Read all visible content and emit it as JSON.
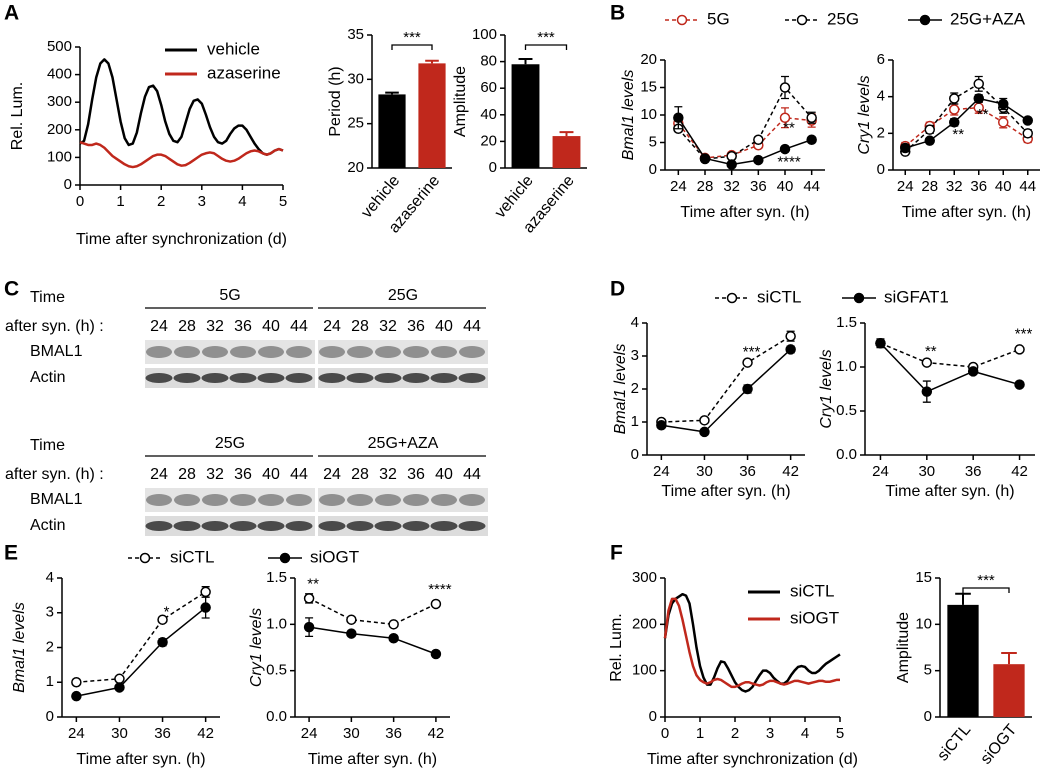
{
  "panel_labels": [
    "A",
    "B",
    "C",
    "D",
    "E",
    "F"
  ],
  "chart_data": [
    {
      "type": "line",
      "xlabel": "Time after synchronization (d)",
      "ylabel": "Rel. Lum.",
      "x": [
        0,
        0.1,
        0.2,
        0.3,
        0.4,
        0.5,
        0.6,
        0.7,
        0.8,
        0.9,
        1.0,
        1.1,
        1.2,
        1.3,
        1.4,
        1.5,
        1.6,
        1.7,
        1.8,
        1.9,
        2.0,
        2.1,
        2.2,
        2.3,
        2.4,
        2.5,
        2.6,
        2.7,
        2.8,
        2.9,
        3.0,
        3.1,
        3.2,
        3.3,
        3.4,
        3.5,
        3.6,
        3.7,
        3.8,
        3.9,
        4.0,
        4.1,
        4.2,
        4.3,
        4.4,
        4.5,
        4.6,
        4.7,
        4.8,
        4.9,
        5.0
      ],
      "xlim": [
        0,
        5
      ],
      "xticks": [
        0,
        1,
        2,
        3,
        4,
        5
      ],
      "ylim": [
        0,
        500
      ],
      "yticks": [
        0,
        100,
        200,
        300,
        400,
        500
      ],
      "series": [
        {
          "name": "vehicle",
          "color": "#000000",
          "values": [
            150,
            160,
            220,
            310,
            390,
            440,
            455,
            440,
            390,
            310,
            230,
            170,
            145,
            150,
            190,
            260,
            320,
            355,
            360,
            340,
            290,
            230,
            185,
            160,
            155,
            175,
            225,
            275,
            305,
            310,
            295,
            255,
            210,
            175,
            155,
            150,
            160,
            185,
            205,
            215,
            215,
            200,
            175,
            150,
            130,
            115,
            110,
            115,
            125,
            130,
            125
          ]
        },
        {
          "name": "azaserine",
          "color": "#c0281c",
          "values": [
            155,
            150,
            145,
            145,
            150,
            145,
            135,
            120,
            105,
            95,
            85,
            75,
            68,
            65,
            68,
            75,
            85,
            95,
            105,
            110,
            110,
            105,
            95,
            85,
            75,
            70,
            72,
            80,
            90,
            100,
            110,
            115,
            118,
            115,
            105,
            95,
            88,
            85,
            88,
            95,
            105,
            115,
            122,
            125,
            122,
            115,
            110,
            115,
            125,
            130,
            125
          ]
        }
      ]
    },
    {
      "type": "bar",
      "ylabel": "Period (h)",
      "categories": [
        "vehicle",
        "azaserine"
      ],
      "values": [
        28.3,
        31.8
      ],
      "errors": [
        0.2,
        0.3
      ],
      "colors": [
        "#000000",
        "#c0281c"
      ],
      "ylim": [
        20,
        35
      ],
      "yticks": [
        20,
        25,
        30,
        35
      ],
      "significance": "***"
    },
    {
      "type": "bar",
      "ylabel": "Amplitude",
      "categories": [
        "vehicle",
        "azaserine"
      ],
      "values": [
        78,
        24
      ],
      "errors": [
        4,
        3
      ],
      "colors": [
        "#000000",
        "#c0281c"
      ],
      "ylim": [
        0,
        100
      ],
      "yticks": [
        0,
        20,
        40,
        60,
        80,
        100
      ],
      "significance": "***"
    },
    {
      "type": "line",
      "xlabel": "Time after syn. (h)",
      "ylabel": "Bmal1 levels",
      "x": [
        24,
        28,
        32,
        36,
        40,
        44
      ],
      "xlim": [
        22,
        46
      ],
      "xticks": [
        24,
        28,
        32,
        36,
        40,
        44
      ],
      "ylim": [
        0,
        20
      ],
      "yticks": [
        0,
        5,
        10,
        15,
        20
      ],
      "series": [
        {
          "name": "5G",
          "color": "#c0281c",
          "dashed": true,
          "marker": "open",
          "values": [
            8.5,
            2.2,
            2.7,
            4.5,
            9.5,
            9.0
          ],
          "errors": [
            1,
            0.3,
            0.3,
            0.5,
            1.8,
            1.2
          ]
        },
        {
          "name": "25G",
          "color": "#000000",
          "dashed": true,
          "marker": "open",
          "values": [
            7.5,
            2.0,
            2.5,
            5.5,
            15,
            9.5
          ],
          "errors": [
            0.5,
            0.2,
            0.3,
            0.5,
            2,
            1
          ]
        },
        {
          "name": "25G+AZA",
          "color": "#000000",
          "dashed": false,
          "marker": "filled",
          "values": [
            9.5,
            2.1,
            1.0,
            1.8,
            3.8,
            5.5
          ],
          "errors": [
            2,
            0.2,
            0.2,
            0.2,
            0.3,
            0.3
          ]
        }
      ],
      "annotations": [
        {
          "text": "**",
          "x": 40
        },
        {
          "text": "****",
          "x": 40
        }
      ]
    },
    {
      "type": "line",
      "xlabel": "Time after syn. (h)",
      "ylabel": "Cry1 levels",
      "x": [
        24,
        28,
        32,
        36,
        40,
        44
      ],
      "xlim": [
        22,
        46
      ],
      "xticks": [
        24,
        28,
        32,
        36,
        40,
        44
      ],
      "ylim": [
        0,
        6
      ],
      "yticks": [
        0,
        2,
        4,
        6
      ],
      "series": [
        {
          "color": "#c0281c",
          "dashed": true,
          "marker": "open",
          "values": [
            1.3,
            2.4,
            3.3,
            3.4,
            2.6,
            1.7
          ],
          "errors": [
            0.2,
            0.2,
            0.3,
            0.3,
            0.3,
            0.2
          ]
        },
        {
          "color": "#000000",
          "dashed": true,
          "marker": "open",
          "values": [
            1.0,
            2.2,
            3.9,
            4.7,
            3.4,
            2.0
          ],
          "errors": [
            0.1,
            0.2,
            0.3,
            0.4,
            0.3,
            0.2
          ]
        },
        {
          "color": "#000000",
          "dashed": false,
          "marker": "filled",
          "values": [
            1.2,
            1.6,
            2.6,
            3.9,
            3.6,
            2.7
          ],
          "errors": [
            0.2,
            0.1,
            0.2,
            0.2,
            0.3,
            0.1
          ]
        }
      ],
      "annotations": [
        {
          "text": "**",
          "x": 32
        },
        {
          "text": "**",
          "x": 36
        }
      ]
    },
    {
      "type": "line",
      "xlabel": "Time after syn. (h)",
      "ylabel": "Bmal1 levels",
      "x": [
        24,
        30,
        36,
        42
      ],
      "xlim": [
        22,
        44
      ],
      "xticks": [
        24,
        30,
        36,
        42
      ],
      "ylim": [
        0,
        4
      ],
      "yticks": [
        0,
        1,
        2,
        3,
        4
      ],
      "series": [
        {
          "name": "siCTL",
          "color": "#000000",
          "dashed": true,
          "marker": "open",
          "values": [
            1.0,
            1.05,
            2.8,
            3.6
          ],
          "errors": [
            0.05,
            0.05,
            0.05,
            0.15
          ]
        },
        {
          "name": "siGFAT1",
          "color": "#000000",
          "dashed": false,
          "marker": "filled",
          "values": [
            0.9,
            0.7,
            2.0,
            3.2
          ],
          "errors": [
            0.05,
            0.05,
            0.12,
            0.1
          ]
        }
      ],
      "annotations": [
        {
          "text": "***",
          "x": 36
        }
      ]
    },
    {
      "type": "line",
      "xlabel": "Time after syn. (h)",
      "ylabel": "Cry1 levels",
      "x": [
        24,
        30,
        36,
        42
      ],
      "xlim": [
        22,
        44
      ],
      "xticks": [
        24,
        30,
        36,
        42
      ],
      "ylim": [
        0,
        1.5
      ],
      "yticks": [
        {
          "value": 0,
          "label": "0.0"
        },
        0.5,
        {
          "value": 1,
          "label": "1.0"
        },
        1.5
      ],
      "series": [
        {
          "color": "#000000",
          "dashed": true,
          "marker": "open",
          "values": [
            1.27,
            1.05,
            1.0,
            1.2
          ],
          "errors": [
            0.03,
            0.02,
            0.02,
            0.02
          ]
        },
        {
          "color": "#000000",
          "dashed": false,
          "marker": "filled",
          "values": [
            1.27,
            0.72,
            0.95,
            0.8
          ],
          "errors": [
            0.05,
            0.12,
            0.03,
            0.02
          ]
        }
      ],
      "annotations": [
        {
          "text": "**",
          "x": 30
        },
        {
          "text": "***",
          "x": 42
        }
      ]
    },
    {
      "type": "line",
      "xlabel": "Time after syn. (h)",
      "ylabel": "Bmal1 levels",
      "x": [
        24,
        30,
        36,
        42
      ],
      "xlim": [
        22,
        44
      ],
      "xticks": [
        24,
        30,
        36,
        42
      ],
      "ylim": [
        0,
        4
      ],
      "yticks": [
        0,
        1,
        2,
        3,
        4
      ],
      "series": [
        {
          "name": "siCTL",
          "color": "#000000",
          "dashed": true,
          "marker": "open",
          "values": [
            1.0,
            1.1,
            2.8,
            3.6
          ],
          "errors": [
            0.03,
            0.04,
            0.05,
            0.15
          ]
        },
        {
          "name": "siOGT",
          "color": "#000000",
          "dashed": false,
          "marker": "filled",
          "values": [
            0.6,
            0.85,
            2.15,
            3.15
          ],
          "errors": [
            0.03,
            0.05,
            0.1,
            0.3
          ]
        }
      ],
      "annotations": [
        {
          "text": "*",
          "x": 36
        }
      ]
    },
    {
      "type": "line",
      "xlabel": "Time after syn. (h)",
      "ylabel": "Cry1 levels",
      "x": [
        24,
        30,
        36,
        42
      ],
      "xlim": [
        22,
        44
      ],
      "xticks": [
        24,
        30,
        36,
        42
      ],
      "ylim": [
        0,
        1.5
      ],
      "yticks": [
        {
          "value": 0,
          "label": "0.0"
        },
        0.5,
        {
          "value": 1,
          "label": "1.0"
        },
        1.5
      ],
      "series": [
        {
          "color": "#000000",
          "dashed": true,
          "marker": "open",
          "values": [
            1.28,
            1.05,
            1.0,
            1.22
          ],
          "errors": [
            0.05,
            0.02,
            0.02,
            0.02
          ]
        },
        {
          "color": "#000000",
          "dashed": false,
          "marker": "filled",
          "values": [
            0.97,
            0.9,
            0.85,
            0.68
          ],
          "errors": [
            0.1,
            0.02,
            0.02,
            0.02
          ]
        }
      ],
      "annotations": [
        {
          "text": "**",
          "x": 24
        },
        {
          "text": "****",
          "x": 42
        }
      ]
    },
    {
      "type": "line",
      "xlabel": "Time after synchronization (d)",
      "ylabel": "Rel. Lum.",
      "x": [
        0,
        0.1,
        0.2,
        0.3,
        0.4,
        0.5,
        0.6,
        0.7,
        0.8,
        0.9,
        1.0,
        1.1,
        1.2,
        1.3,
        1.4,
        1.5,
        1.6,
        1.7,
        1.8,
        1.9,
        2.0,
        2.1,
        2.2,
        2.3,
        2.4,
        2.5,
        2.6,
        2.7,
        2.8,
        2.9,
        3.0,
        3.1,
        3.2,
        3.3,
        3.4,
        3.5,
        3.6,
        3.7,
        3.8,
        3.9,
        4.0,
        4.1,
        4.2,
        4.3,
        4.4,
        4.5,
        4.6,
        4.7,
        4.8,
        4.9,
        5.0
      ],
      "xlim": [
        0,
        5
      ],
      "xticks": [
        0,
        1,
        2,
        3,
        4,
        5
      ],
      "ylim": [
        0,
        300
      ],
      "yticks": [
        0,
        100,
        200,
        300
      ],
      "series": [
        {
          "name": "siCTL",
          "color": "#000000",
          "values": [
            170,
            220,
            245,
            255,
            260,
            265,
            262,
            245,
            200,
            150,
            110,
            85,
            70,
            70,
            85,
            105,
            120,
            118,
            105,
            90,
            75,
            65,
            58,
            55,
            58,
            65,
            78,
            90,
            100,
            100,
            95,
            85,
            78,
            72,
            72,
            78,
            90,
            100,
            108,
            110,
            108,
            100,
            95,
            95,
            100,
            108,
            115,
            120,
            125,
            130,
            135
          ]
        },
        {
          "name": "siOGT",
          "color": "#c0281c",
          "values": [
            170,
            230,
            255,
            255,
            240,
            210,
            175,
            140,
            110,
            90,
            80,
            75,
            72,
            75,
            80,
            82,
            80,
            75,
            70,
            65,
            65,
            68,
            72,
            75,
            75,
            72,
            70,
            68,
            70,
            75,
            78,
            78,
            75,
            72,
            70,
            72,
            75,
            78,
            78,
            76,
            74,
            72,
            74,
            76,
            78,
            78,
            76,
            76,
            78,
            80,
            80
          ]
        }
      ]
    },
    {
      "type": "bar",
      "ylabel": "Amplitude",
      "categories": [
        "siCTL",
        "siOGT"
      ],
      "values": [
        12.1,
        5.7
      ],
      "errors": [
        1.2,
        1.2
      ],
      "colors": [
        "#000000",
        "#c0281c"
      ],
      "ylim": [
        0,
        15
      ],
      "yticks": [
        0,
        5,
        10,
        15
      ],
      "significance": "***"
    }
  ],
  "blots": [
    {
      "time_label": "Time",
      "time_sub_label": "after syn. (h) :",
      "rows": [
        "BMAL1",
        "Actin"
      ],
      "conditions": [
        {
          "name": "5G",
          "times": [
            24,
            28,
            32,
            36,
            40,
            44
          ]
        },
        {
          "name": "25G",
          "times": [
            24,
            28,
            32,
            36,
            40,
            44
          ]
        }
      ]
    },
    {
      "time_label": "Time",
      "time_sub_label": "after syn. (h) :",
      "rows": [
        "BMAL1",
        "Actin"
      ],
      "conditions": [
        {
          "name": "25G",
          "times": [
            24,
            28,
            32,
            36,
            40,
            44
          ]
        },
        {
          "name": "25G+AZA",
          "times": [
            24,
            28,
            32,
            36,
            40,
            44
          ]
        }
      ]
    }
  ]
}
